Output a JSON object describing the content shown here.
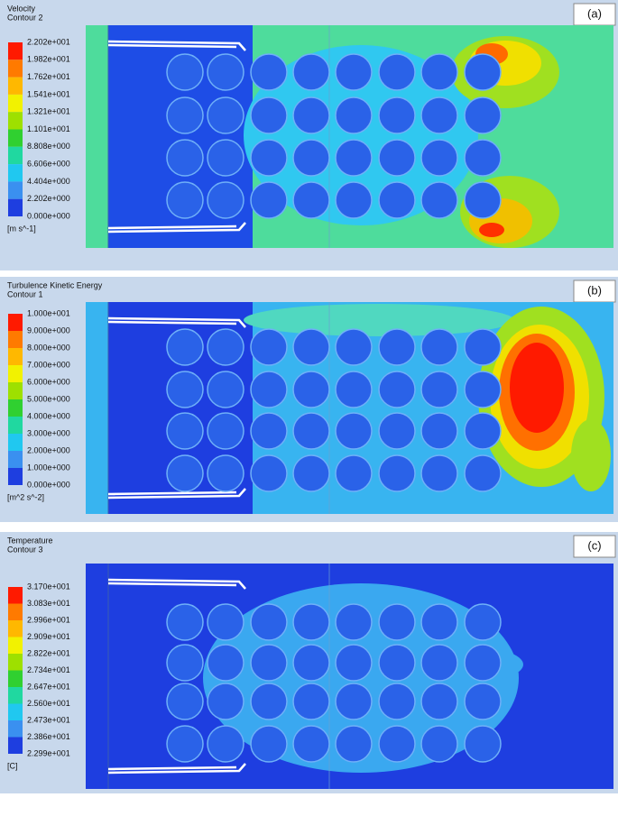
{
  "panels": [
    {
      "tag": "(a)",
      "title": "Velocity",
      "subtitle": "Contour 2",
      "levels": [
        "2.202e+001",
        "1.982e+001",
        "1.762e+001",
        "1.541e+001",
        "1.321e+001",
        "1.101e+001",
        "8.808e+000",
        "6.606e+000",
        "4.404e+000",
        "2.202e+000",
        "0.000e+000"
      ],
      "unit": "[m s^-1]"
    },
    {
      "tag": "(b)",
      "title": "Turbulence Kinetic Energy",
      "subtitle": "Contour 1",
      "levels": [
        "1.000e+001",
        "9.000e+000",
        "8.000e+000",
        "7.000e+000",
        "6.000e+000",
        "5.000e+000",
        "4.000e+000",
        "3.000e+000",
        "2.000e+000",
        "1.000e+000",
        "0.000e+000"
      ],
      "unit": "[m^2 s^-2]"
    },
    {
      "tag": "(c)",
      "title": "Temperature",
      "subtitle": "Contour 3",
      "levels": [
        "3.170e+001",
        "3.083e+001",
        "2.996e+001",
        "2.909e+001",
        "2.822e+001",
        "2.734e+001",
        "2.647e+001",
        "2.560e+001",
        "2.473e+001",
        "2.386e+001",
        "2.299e+001"
      ],
      "unit": "[C]"
    }
  ]
}
